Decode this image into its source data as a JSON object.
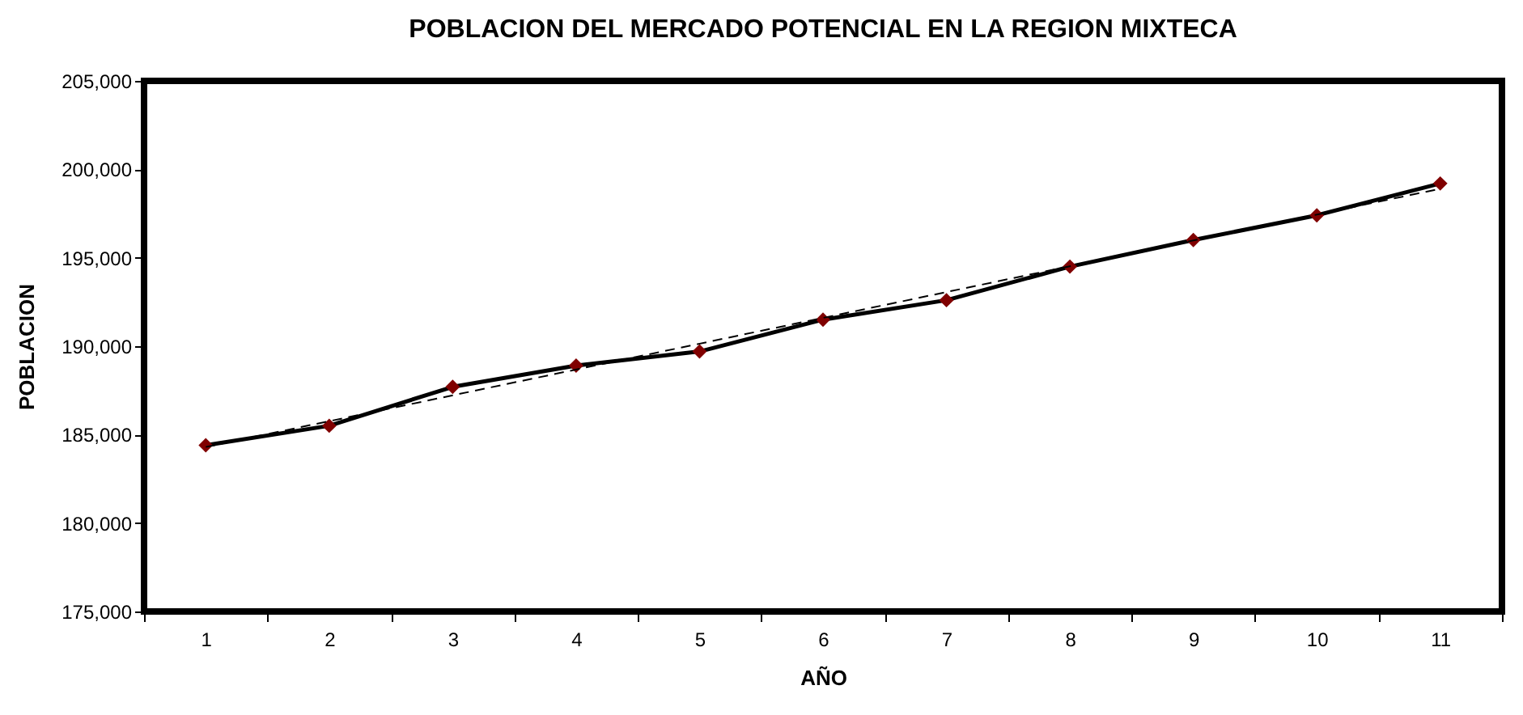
{
  "chart_data": {
    "type": "line",
    "title": "POBLACION DEL MERCADO POTENCIAL EN LA REGION MIXTECA",
    "xlabel": "AÑO",
    "ylabel": "POBLACION",
    "categories": [
      "1",
      "2",
      "3",
      "4",
      "5",
      "6",
      "7",
      "8",
      "9",
      "10",
      "11"
    ],
    "series": [
      {
        "color": "#000000",
        "colors": [
          "#800000",
          "#800000",
          "#800000",
          "#800000",
          "#800000",
          "#800000",
          "#800000",
          "#800000",
          "#800000",
          "#800000",
          "#800000"
        ],
        "marker": "diamond",
        "line_style": "solid",
        "values": [
          184400,
          185500,
          187700,
          188900,
          189700,
          191500,
          192600,
          194500,
          196000,
          197400,
          199200
        ]
      },
      {
        "type": "line",
        "color": "#000000",
        "marker": "none",
        "line_style": "dashed",
        "x": [
          "1",
          "11"
        ],
        "values": [
          184300,
          198900
        ]
      }
    ],
    "ylim": [
      175000,
      205000
    ],
    "yticks": [
      {
        "value": 175000,
        "label": "175,000"
      },
      {
        "value": 180000,
        "label": "180,000"
      },
      {
        "value": 185000,
        "label": "185,000"
      },
      {
        "value": 190000,
        "label": "190,000"
      },
      {
        "value": 195000,
        "label": "195,000"
      },
      {
        "value": 200000,
        "label": "200,000"
      },
      {
        "value": 205000,
        "label": "205,000"
      }
    ],
    "grid": false
  }
}
